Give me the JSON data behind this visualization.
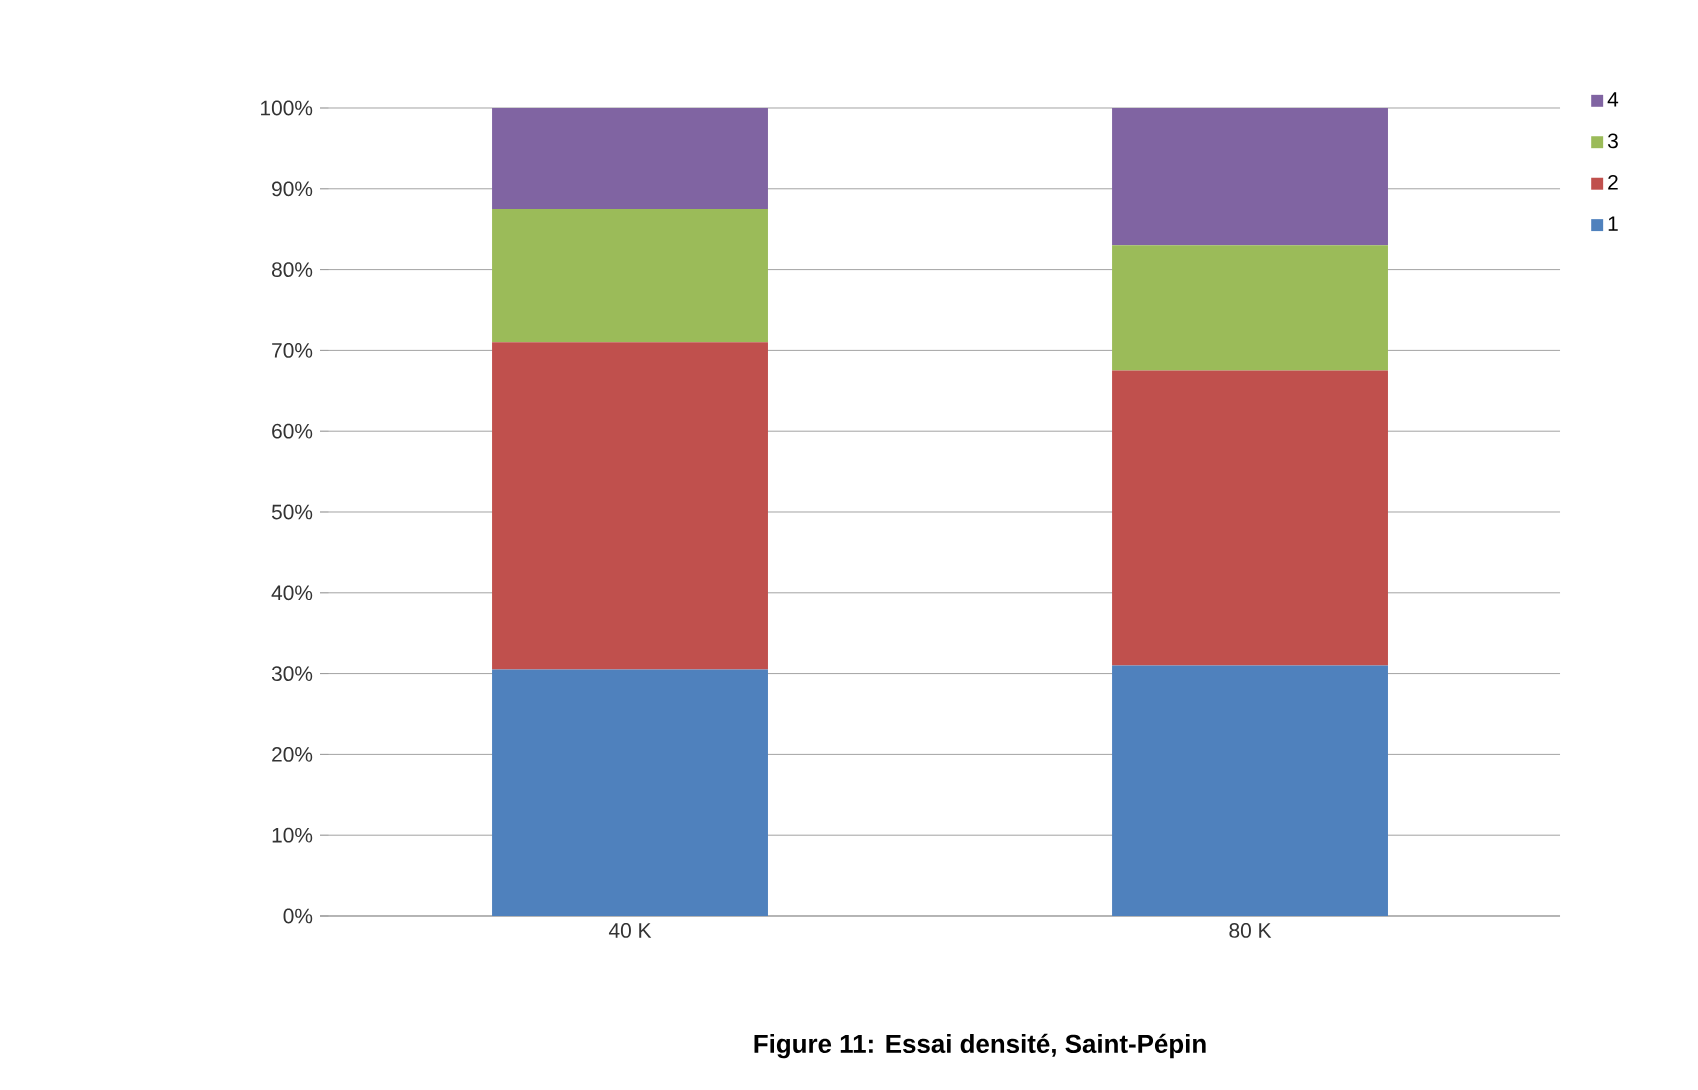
{
  "chart_data": {
    "type": "bar",
    "stacked": true,
    "title": "Figure 11: Essai densité, Saint-Pépin",
    "categories": [
      "40 K",
      "80 K"
    ],
    "series": [
      {
        "name": "1",
        "color": "#4f81bd",
        "values": [
          30.5,
          31
        ]
      },
      {
        "name": "2",
        "color": "#c0504d",
        "values": [
          40.5,
          36.5
        ]
      },
      {
        "name": "3",
        "color": "#9bbb59",
        "values": [
          16.5,
          15.5
        ]
      },
      {
        "name": "4",
        "color": "#8064a2",
        "values": [
          12.5,
          17
        ]
      }
    ],
    "ylim": [
      0,
      100
    ],
    "yticks": [
      {
        "value": 0,
        "label": "0%"
      },
      {
        "value": 10,
        "label": "10%"
      },
      {
        "value": 20,
        "label": "20%"
      },
      {
        "value": 30,
        "label": "30%"
      },
      {
        "value": 40,
        "label": "40%"
      },
      {
        "value": 50,
        "label": "50%"
      },
      {
        "value": 60,
        "label": "60%"
      },
      {
        "value": 70,
        "label": "70%"
      },
      {
        "value": 80,
        "label": "80%"
      },
      {
        "value": 90,
        "label": "90%"
      },
      {
        "value": 100,
        "label": "100%"
      }
    ],
    "grid": "y",
    "legend": "top right"
  }
}
